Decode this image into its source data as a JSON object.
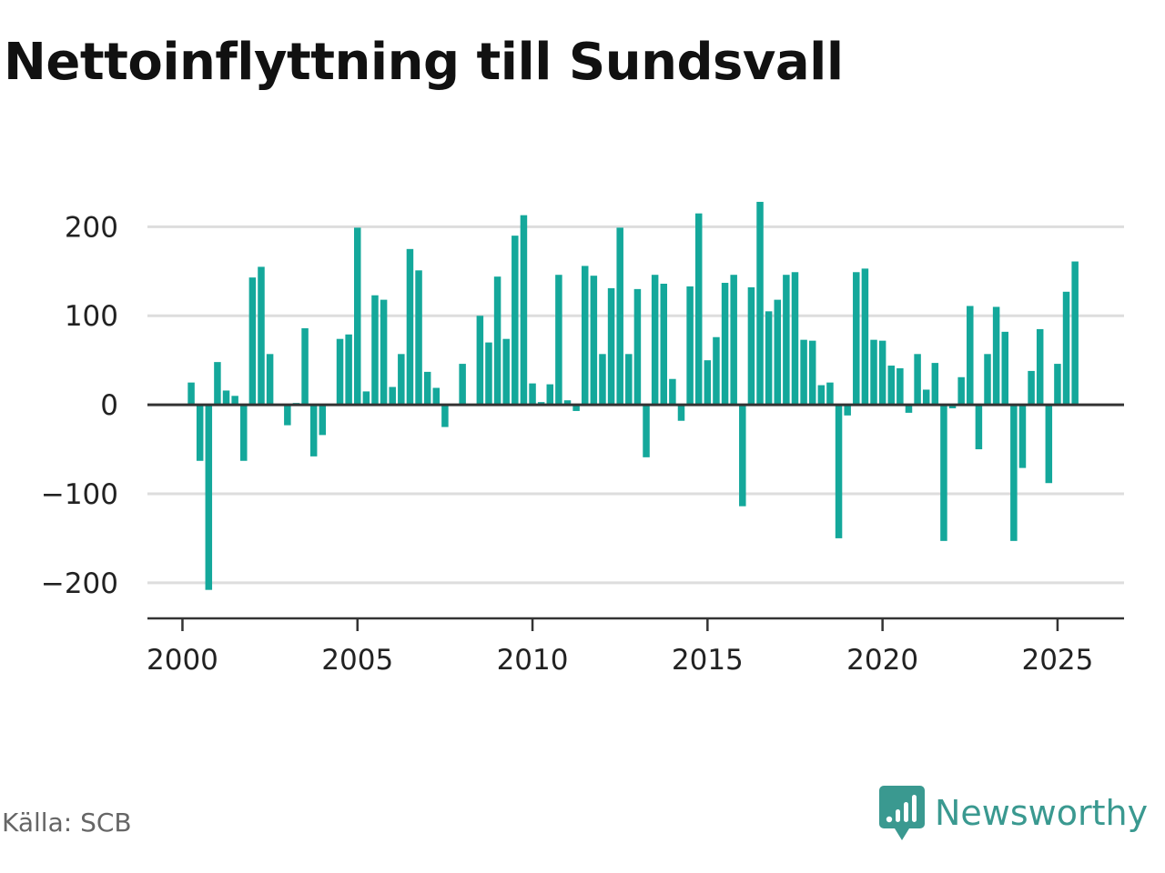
{
  "title": "Nettoinflyttning till Sundsvall",
  "source": "Källa: SCB",
  "brand": {
    "name": "Newsworthy",
    "icon": "newsworthy-logo-icon",
    "color": "#3a9990"
  },
  "colors": {
    "bar": "#14a89b",
    "zero_line": "#333333",
    "grid": "#dddddd",
    "axis": "#333333"
  },
  "chart_data": {
    "type": "bar",
    "title": "Nettoinflyttning till Sundsvall",
    "xlabel": "",
    "ylabel": "",
    "grid": true,
    "legend": "none",
    "ylim": [
      -240,
      230
    ],
    "xlim": [
      1999,
      2026.9
    ],
    "xticks": [
      2000,
      2005,
      2010,
      2015,
      2020,
      2025
    ],
    "yticks": [
      -200,
      -100,
      0,
      100,
      200
    ],
    "ytick_labels": [
      "−200",
      "−100",
      "0",
      "100",
      "200"
    ],
    "series": [
      {
        "x": [
          2000.25,
          2000.5,
          2000.75,
          2001.0,
          2001.25,
          2001.5,
          2001.75,
          2002.0,
          2002.25,
          2002.5,
          2002.75,
          2003.0,
          2003.25,
          2003.5,
          2003.75,
          2004.0,
          2004.25,
          2004.5,
          2004.75,
          2005.0,
          2005.25,
          2005.5,
          2005.75,
          2006.0,
          2006.25,
          2006.5,
          2006.75,
          2007.0,
          2007.25,
          2007.5,
          2007.75,
          2008.0,
          2008.25,
          2008.5,
          2008.75,
          2009.0,
          2009.25,
          2009.5,
          2009.75,
          2010.0,
          2010.25,
          2010.5,
          2010.75,
          2011.0,
          2011.25,
          2011.5,
          2011.75,
          2012.0,
          2012.25,
          2012.5,
          2012.75,
          2013.0,
          2013.25,
          2013.5,
          2013.75,
          2014.0,
          2014.25,
          2014.5,
          2014.75,
          2015.0,
          2015.25,
          2015.5,
          2015.75,
          2016.0,
          2016.25,
          2016.5,
          2016.75,
          2017.0,
          2017.25,
          2017.5,
          2017.75,
          2018.0,
          2018.25,
          2018.5,
          2018.75,
          2019.0,
          2019.25,
          2019.5,
          2019.75,
          2020.0,
          2020.25,
          2020.5,
          2020.75,
          2021.0,
          2021.25,
          2021.5,
          2021.75,
          2022.0,
          2022.25,
          2022.5,
          2022.75,
          2023.0,
          2023.25,
          2023.5,
          2023.75,
          2024.0,
          2024.25,
          2024.5,
          2024.75,
          2025.0,
          2025.25,
          2025.5
        ],
        "values": [
          25,
          -63,
          -208,
          48,
          16,
          10,
          -63,
          143,
          155,
          57,
          0,
          -23,
          2,
          86,
          -58,
          -34,
          0,
          74,
          79,
          199,
          15,
          123,
          118,
          20,
          57,
          175,
          151,
          37,
          19,
          -25,
          0,
          46,
          0,
          100,
          70,
          144,
          74,
          190,
          213,
          24,
          3,
          23,
          146,
          5,
          -7,
          156,
          145,
          57,
          131,
          199,
          57,
          130,
          -59,
          146,
          136,
          29,
          -18,
          133,
          215,
          50,
          76,
          137,
          146,
          -114,
          132,
          228,
          105,
          118,
          146,
          149,
          73,
          72,
          22,
          25,
          -150,
          -12,
          149,
          153,
          73,
          72,
          44,
          41,
          -9,
          57,
          17,
          47,
          -153,
          -4,
          31,
          111,
          -50,
          57,
          110,
          82,
          -153,
          -71,
          38,
          85,
          -88,
          46,
          127,
          161
        ]
      }
    ]
  }
}
